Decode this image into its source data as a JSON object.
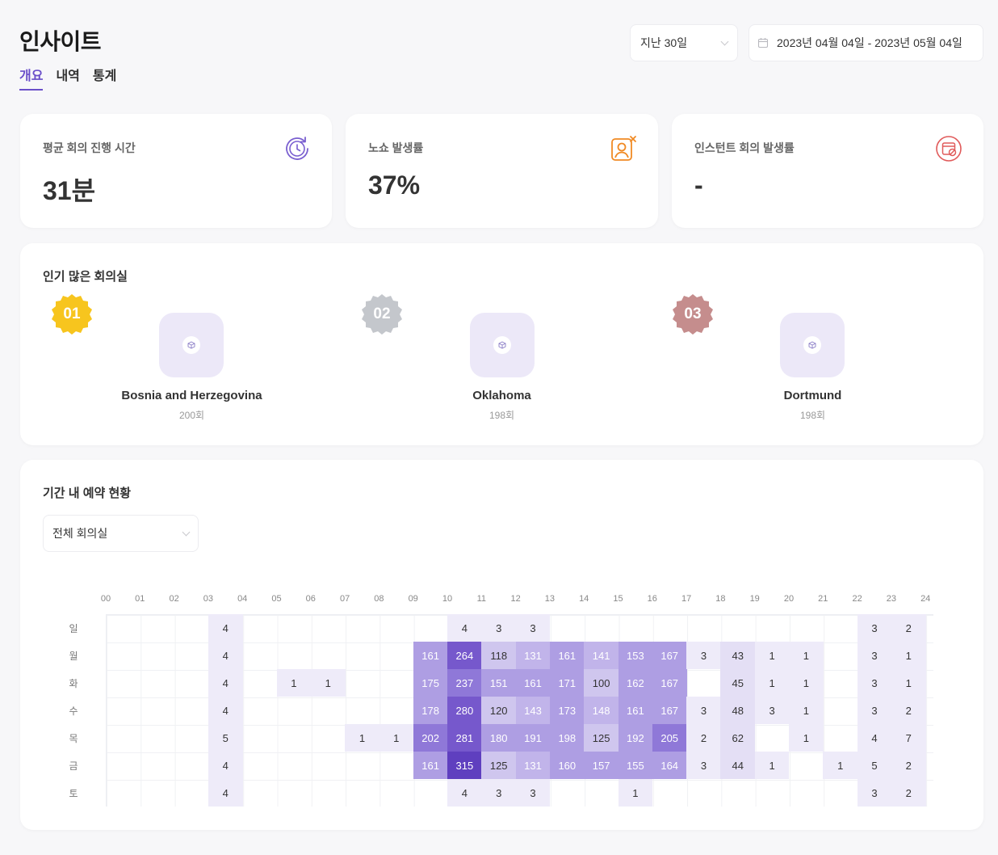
{
  "page": {
    "title": "인사이트"
  },
  "tabs": [
    {
      "label": "개요",
      "active": true
    },
    {
      "label": "내역",
      "active": false
    },
    {
      "label": "통계",
      "active": false
    }
  ],
  "filters": {
    "period": "지난 30일",
    "date_range": "2023년 04월 04일 - 2023년 05월 04일"
  },
  "stats": [
    {
      "label": "평균 회의 진행 시간",
      "value": "31분",
      "icon": "clock-refresh-icon",
      "color": "#7a5fd0"
    },
    {
      "label": "노쇼 발생률",
      "value": "37%",
      "icon": "user-x-icon",
      "color": "#f08a24"
    },
    {
      "label": "인스턴트 회의 발생률",
      "value": "-",
      "icon": "calendar-cancel-icon",
      "color": "#e05a5a"
    }
  ],
  "popular": {
    "title": "인기 많은 회의실",
    "rooms": [
      {
        "rank": "01",
        "name": "Bosnia and Herzegovina",
        "count": "200회",
        "badge_color": "#f7c51e"
      },
      {
        "rank": "02",
        "name": "Oklahoma",
        "count": "198회",
        "badge_color": "#c4c7cc"
      },
      {
        "rank": "03",
        "name": "Dortmund",
        "count": "198회",
        "badge_color": "#c58d8d"
      }
    ]
  },
  "reservations": {
    "title": "기간 내 예약 현황",
    "room_filter": "전체 회의실",
    "hours": [
      "00",
      "01",
      "02",
      "03",
      "04",
      "05",
      "06",
      "07",
      "08",
      "09",
      "10",
      "11",
      "12",
      "13",
      "14",
      "15",
      "16",
      "17",
      "18",
      "19",
      "20",
      "21",
      "22",
      "23",
      "24"
    ],
    "days": [
      "일",
      "월",
      "화",
      "수",
      "목",
      "금",
      "토"
    ],
    "grid": [
      [
        null,
        null,
        null,
        4,
        null,
        null,
        null,
        null,
        null,
        null,
        4,
        3,
        3,
        null,
        null,
        null,
        null,
        null,
        null,
        null,
        null,
        null,
        3,
        2
      ],
      [
        null,
        null,
        null,
        4,
        null,
        null,
        null,
        null,
        null,
        161,
        264,
        118,
        131,
        161,
        141,
        153,
        167,
        3,
        43,
        1,
        1,
        null,
        3,
        1
      ],
      [
        null,
        null,
        null,
        4,
        null,
        1,
        1,
        null,
        null,
        175,
        237,
        151,
        161,
        171,
        100,
        162,
        167,
        null,
        45,
        1,
        1,
        null,
        3,
        1
      ],
      [
        null,
        null,
        null,
        4,
        null,
        null,
        null,
        null,
        null,
        178,
        280,
        120,
        143,
        173,
        148,
        161,
        167,
        3,
        48,
        3,
        1,
        null,
        3,
        2
      ],
      [
        null,
        null,
        null,
        5,
        null,
        null,
        null,
        1,
        1,
        202,
        281,
        180,
        191,
        198,
        125,
        192,
        205,
        2,
        62,
        null,
        1,
        null,
        4,
        7
      ],
      [
        null,
        null,
        null,
        4,
        null,
        null,
        null,
        null,
        null,
        161,
        315,
        125,
        131,
        160,
        157,
        155,
        164,
        3,
        44,
        1,
        null,
        1,
        5,
        2
      ],
      [
        null,
        null,
        null,
        4,
        null,
        null,
        null,
        null,
        null,
        null,
        4,
        3,
        3,
        null,
        null,
        1,
        null,
        null,
        null,
        null,
        null,
        null,
        3,
        2
      ]
    ]
  }
}
